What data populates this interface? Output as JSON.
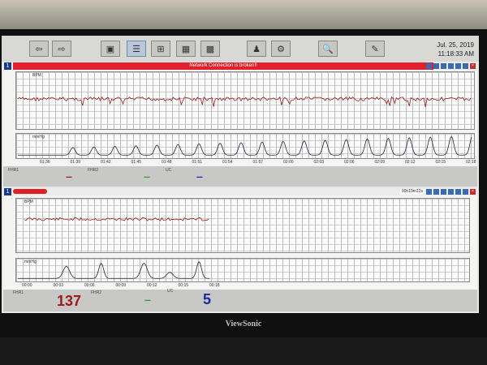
{
  "toolbar": {
    "buttons": [
      {
        "name": "back-button",
        "icon": "arrow-left-icon",
        "glyph": "⇦"
      },
      {
        "name": "forward-button",
        "icon": "arrow-right-icon",
        "glyph": "⇨"
      },
      {
        "name": "single-view-button",
        "icon": "window-icon",
        "glyph": "▣"
      },
      {
        "name": "two-bed-view-button",
        "icon": "layout-2-icon",
        "glyph": "☰",
        "active": true
      },
      {
        "name": "four-bed-view-button",
        "icon": "layout-4-icon",
        "glyph": "⊞"
      },
      {
        "name": "six-bed-view-button",
        "icon": "layout-6-icon",
        "glyph": "▦"
      },
      {
        "name": "nine-bed-view-button",
        "icon": "layout-9-icon",
        "glyph": "▩"
      },
      {
        "name": "patient-button",
        "icon": "patient-icon",
        "glyph": "♟"
      },
      {
        "name": "settings-button",
        "icon": "gears-icon",
        "glyph": "⚙"
      },
      {
        "name": "search-button",
        "icon": "magnifier-icon",
        "glyph": "🔍"
      },
      {
        "name": "edit-button",
        "icon": "pen-icon",
        "glyph": "✎"
      }
    ],
    "date": "Jul. 25, 2019",
    "time": "11:18:33 AM"
  },
  "panels": [
    {
      "number": "1",
      "alarm": "Network Connection is broken!!",
      "fhr_label": "BPM",
      "uc_label": "mmHg",
      "time_ticks": [
        "01:36",
        "01:39",
        "01:42",
        "01:45",
        "01:48",
        "01:51",
        "01:54",
        "01:57",
        "02:00",
        "02:03",
        "02:06",
        "02:09",
        "02:12",
        "02:15",
        "02:18"
      ],
      "fhr1_label": "FHR1",
      "fhr2_label": "FHR2",
      "uc_status_label": "UC",
      "fhr1_value": "---",
      "fhr2_value": "---",
      "uc_value": "---"
    },
    {
      "number": "1",
      "timer": "00h19m12s",
      "fhr_label": "BPM",
      "uc_label": "mmHg",
      "time_ticks": [
        "00:00",
        "00:03",
        "00:06",
        "00:09",
        "00:12",
        "00:15",
        "00:18"
      ],
      "fhr1_label": "FHR1",
      "fhr2_label": "FHR2",
      "uc_status_label": "UC",
      "fhr1_value": "137",
      "fhr2_value": "---",
      "uc_value": "5"
    }
  ],
  "colors": {
    "fhr1": "#9a1a1a",
    "fhr2": "#2aa02a",
    "uc": "#1a2aa0",
    "alarm": "#e0202a"
  },
  "brand": "ViewSonic"
}
